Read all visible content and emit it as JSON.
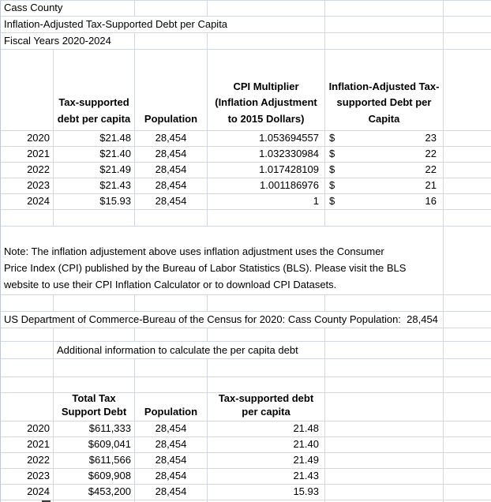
{
  "titles": {
    "line1": "Cass County",
    "line2": "Inflation-Adjusted Tax-Supported Debt per Capita",
    "line3": "Fiscal Years 2020-2024"
  },
  "top_table": {
    "currency_symbol": "$",
    "headers": {
      "debt_per_capita": "Tax-supported\ndebt per capita",
      "population": "Population",
      "cpi": "CPI Multiplier\n(Inflation Adjustment\nto 2015 Dollars)",
      "adjusted": "Inflation-Adjusted Tax-\nsupported Debt per\nCapita"
    },
    "rows": [
      {
        "year": "2020",
        "debt": "$21.48",
        "population": "28,454",
        "cpi": "1.053694557",
        "adjusted": "23"
      },
      {
        "year": "2021",
        "debt": "$21.40",
        "population": "28,454",
        "cpi": "1.032330984",
        "adjusted": "22"
      },
      {
        "year": "2022",
        "debt": "$21.49",
        "population": "28,454",
        "cpi": "1.017428109",
        "adjusted": "22"
      },
      {
        "year": "2023",
        "debt": "$21.43",
        "population": "28,454",
        "cpi": "1.001186976",
        "adjusted": "21"
      },
      {
        "year": "2024",
        "debt": "$15.93",
        "population": "28,454",
        "cpi": "1",
        "adjusted": "16"
      }
    ]
  },
  "note": "Note: The inflation adjustement above uses inflation adjustment uses the Consumer\nPrice Index (CPI) published by the Bureau of Labor Statistics (BLS). Please visit the BLS\nwebsite to use their CPI Inflation Calculator or to download CPI Datasets.",
  "census_line": "US Department of Commerce-Bureau of the Census for 2020: Cass County Population:  28,454",
  "additional_info_label": "Additional information to calculate the per capita debt",
  "bottom_table": {
    "headers": {
      "total_debt": "Total Tax\nSupport Debt",
      "population": "Population",
      "per_capita": "Tax-supported debt\nper capita"
    },
    "rows": [
      {
        "year": "2020",
        "total": "$611,333",
        "population": "28,454",
        "per_capita": "21.48"
      },
      {
        "year": "2021",
        "total": "$609,041",
        "population": "28,454",
        "per_capita": "21.40"
      },
      {
        "year": "2022",
        "total": "$611,566",
        "population": "28,454",
        "per_capita": "21.49"
      },
      {
        "year": "2023",
        "total": "$609,908",
        "population": "28,454",
        "per_capita": "21.43"
      },
      {
        "year": "2024",
        "total": "$453,200",
        "population": "28,454",
        "per_capita": "15.93"
      }
    ]
  },
  "colors": {
    "gridline": "#d3d7e0",
    "text": "#000000",
    "background": "#ffffff"
  }
}
